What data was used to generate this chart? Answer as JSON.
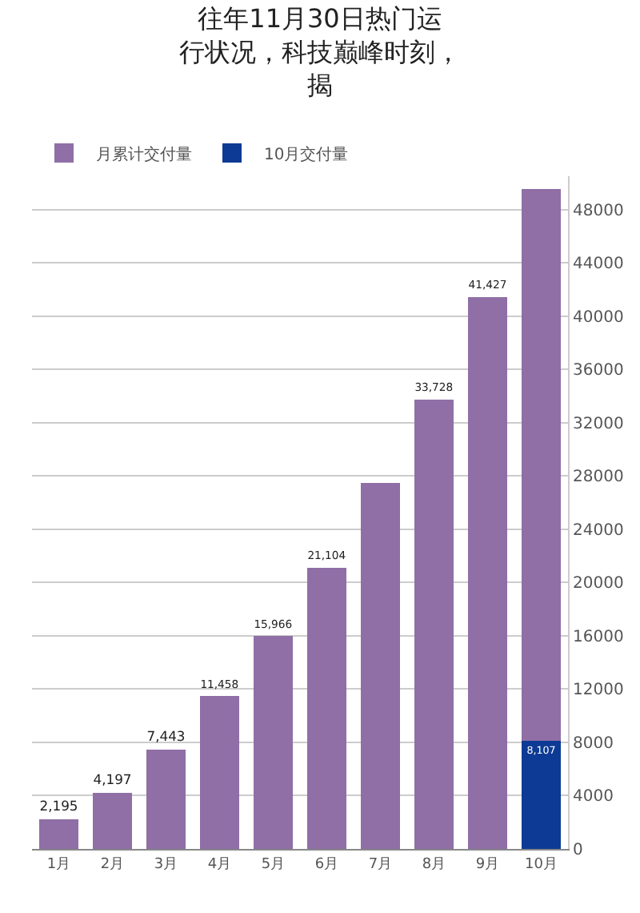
{
  "chart_data": {
    "type": "bar",
    "title": "往年11月30日热门运行状况，科技巅峰时刻，揭",
    "categories": [
      "1月",
      "2月",
      "3月",
      "4月",
      "5月",
      "6月",
      "7月",
      "8月",
      "9月",
      "10月"
    ],
    "stacked": true,
    "series": [
      {
        "name": "10月交付量",
        "color": "#0d3a94",
        "values": [
          null,
          null,
          null,
          null,
          null,
          null,
          null,
          null,
          null,
          8107
        ],
        "value_labels": [
          null,
          null,
          null,
          null,
          null,
          null,
          null,
          null,
          null,
          "8,107"
        ]
      },
      {
        "name": "月累计交付量",
        "color": "#8f6fa6",
        "values": [
          2195,
          4197,
          7443,
          11458,
          15966,
          21104,
          27500,
          33728,
          41427,
          41427
        ],
        "value_labels": [
          "2,195",
          "4,197",
          "7,443",
          "11,458",
          "15,966",
          "21,104",
          null,
          "33,728",
          "41,427",
          null
        ]
      }
    ],
    "ylim": [
      0,
      50500
    ],
    "yticks": [
      0,
      4000,
      8000,
      12000,
      16000,
      20000,
      24000,
      28000,
      32000,
      36000,
      40000,
      44000,
      48000
    ],
    "grid": "y",
    "legend": "top left"
  }
}
